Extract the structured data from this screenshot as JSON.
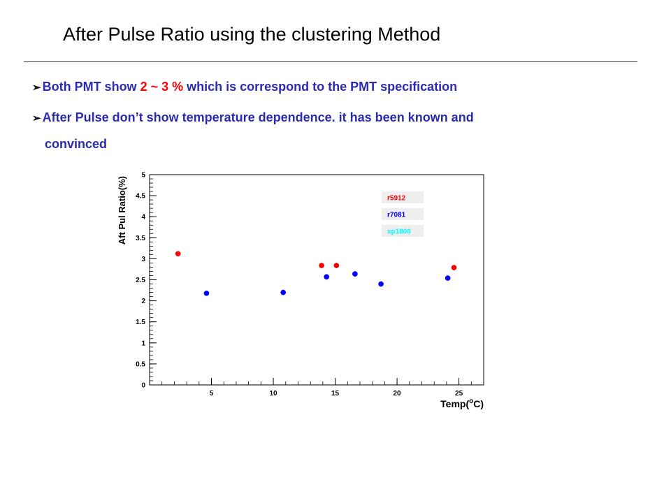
{
  "slide": {
    "title": "After Pulse Ratio using the clustering Method",
    "bullets": [
      {
        "arrow": "➢",
        "before": "Both PMT show ",
        "highlight": "2 ~ 3 %",
        "after": " which is correspond to the PMT specification"
      },
      {
        "arrow": "➢",
        "text": "After Pulse don’t show temperature dependence. it has been known and",
        "continuation": "convinced"
      }
    ],
    "colors": {
      "bullet_text": "#2b2bb0",
      "highlight": "#ff0000",
      "title": "#000000"
    }
  },
  "chart_data": {
    "type": "scatter",
    "xlabel": "Temp(°C)",
    "xlabel_parts": {
      "prefix": "Temp(",
      "sup": "o",
      "suffix": "C)"
    },
    "ylabel": "Aft Pul Ratio(%)",
    "xlim": [
      0,
      27
    ],
    "ylim": [
      0,
      5
    ],
    "x_ticks": [
      5,
      10,
      15,
      20,
      25
    ],
    "y_ticks": [
      0,
      0.5,
      1,
      1.5,
      2,
      2.5,
      3,
      3.5,
      4,
      4.5,
      5
    ],
    "y_tick_labels": [
      "0",
      "0.5",
      "1",
      "1.5",
      "2",
      "2.5",
      "3",
      "3.5",
      "4",
      "4.5",
      "5"
    ],
    "legend_placement": "top-right",
    "grid": false,
    "series": [
      {
        "name": "r5912",
        "color": "#ff0000",
        "points": [
          {
            "x": 2.3,
            "y": 3.12
          },
          {
            "x": 13.9,
            "y": 2.84
          },
          {
            "x": 15.1,
            "y": 2.84
          },
          {
            "x": 24.6,
            "y": 2.79
          }
        ]
      },
      {
        "name": "r7081",
        "color": "#0000ff",
        "points": [
          {
            "x": 4.6,
            "y": 2.18
          },
          {
            "x": 10.8,
            "y": 2.2
          },
          {
            "x": 14.3,
            "y": 2.57
          },
          {
            "x": 16.6,
            "y": 2.64
          },
          {
            "x": 18.7,
            "y": 2.4
          },
          {
            "x": 24.1,
            "y": 2.54
          }
        ]
      },
      {
        "name": "xp1806",
        "color": "#00ffff",
        "points": []
      }
    ]
  }
}
